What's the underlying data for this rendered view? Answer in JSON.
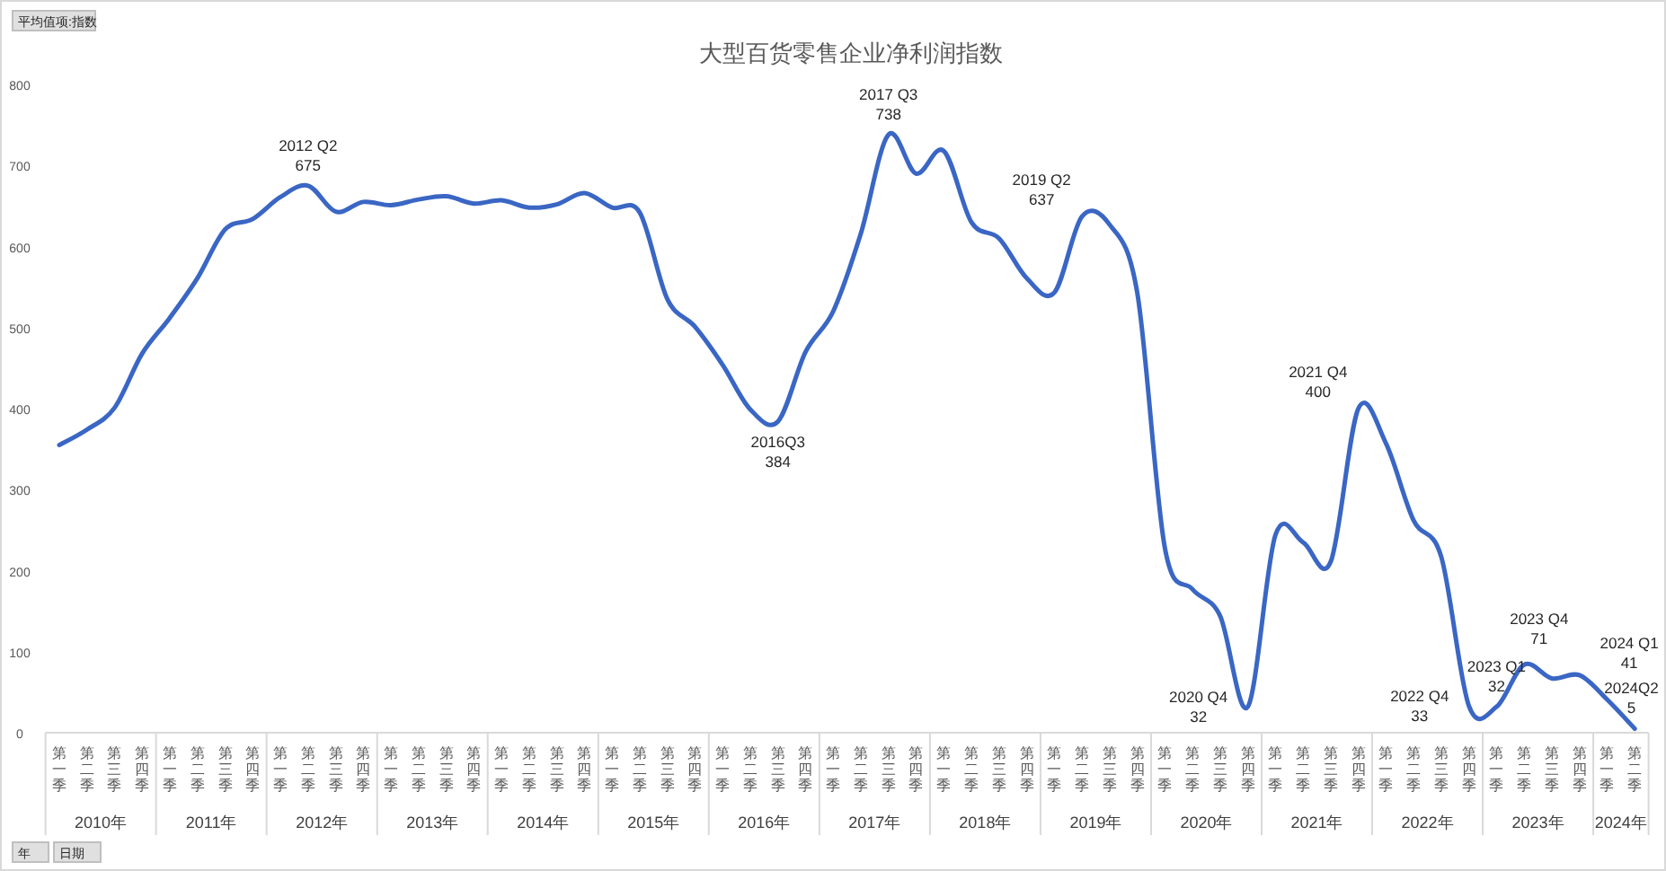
{
  "chart_data": {
    "type": "line",
    "title": "大型百货零售企业净利润指数",
    "categories": [
      "第一季",
      "第二季",
      "第三季",
      "第四季",
      "第一季",
      "第二季",
      "第三季",
      "第四季",
      "第一季",
      "第二季",
      "第三季",
      "第四季",
      "第一季",
      "第二季",
      "第三季",
      "第四季",
      "第一季",
      "第二季",
      "第三季",
      "第四季",
      "第一季",
      "第二季",
      "第三季",
      "第四季",
      "第一季",
      "第二季",
      "第三季",
      "第四季",
      "第一季",
      "第二季",
      "第三季",
      "第四季",
      "第一季",
      "第二季",
      "第三季",
      "第四季",
      "第一季",
      "第二季",
      "第三季",
      "第四季",
      "第一季",
      "第二季",
      "第三季",
      "第四季",
      "第一季",
      "第二季",
      "第三季",
      "第四季",
      "第一季",
      "第二季",
      "第三季",
      "第四季",
      "第一季",
      "第二季",
      "第三季",
      "第四季",
      "第一季",
      "第二季"
    ],
    "series": [
      {
        "color": "#3a66c4",
        "values": [
          355,
          374,
          401,
          468,
          512,
          561,
          621,
          634,
          661,
          675,
          643,
          655,
          651,
          658,
          662,
          653,
          657,
          648,
          652,
          666,
          648,
          642,
          535,
          501,
          454,
          399,
          384,
          470,
          520,
          616,
          738,
          690,
          718,
          630,
          610,
          561,
          543,
          637,
          627,
          543,
          228,
          177,
          144,
          32,
          244,
          235,
          211,
          400,
          357,
          262,
          217,
          33,
          32,
          84,
          67,
          71,
          41,
          5
        ],
        "value_labels": [
          null,
          null,
          null,
          null,
          null,
          null,
          null,
          null,
          null,
          "2012 Q2\n675",
          null,
          null,
          null,
          null,
          null,
          null,
          null,
          null,
          null,
          null,
          null,
          null,
          null,
          null,
          null,
          null,
          "2016Q3\n384",
          null,
          null,
          null,
          "2017 Q3\n738",
          null,
          null,
          null,
          null,
          null,
          null,
          "2019 Q2\n637",
          null,
          null,
          null,
          null,
          null,
          "2020 Q4\n32",
          null,
          null,
          null,
          "2021 Q4\n400",
          null,
          null,
          null,
          "2022 Q4\n33",
          "2023 Q1\n32",
          null,
          null,
          "2023 Q4\n71",
          "2024 Q1\n41",
          "2024Q2\n5"
        ]
      }
    ],
    "ylim": [
      0,
      800
    ],
    "yticks": [
      0,
      100,
      200,
      300,
      400,
      500,
      600,
      700,
      800
    ],
    "grid": false,
    "marker": "none",
    "line_style": "solid",
    "annotations": [
      "平均值项:指数",
      "年",
      "日期",
      "2010年",
      "2011年",
      "2012年",
      "2013年",
      "2014年",
      "2015年",
      "2016年",
      "2017年",
      "2018年",
      "2019年",
      "2020年",
      "2021年",
      "2022年",
      "2023年",
      "2024年"
    ]
  }
}
